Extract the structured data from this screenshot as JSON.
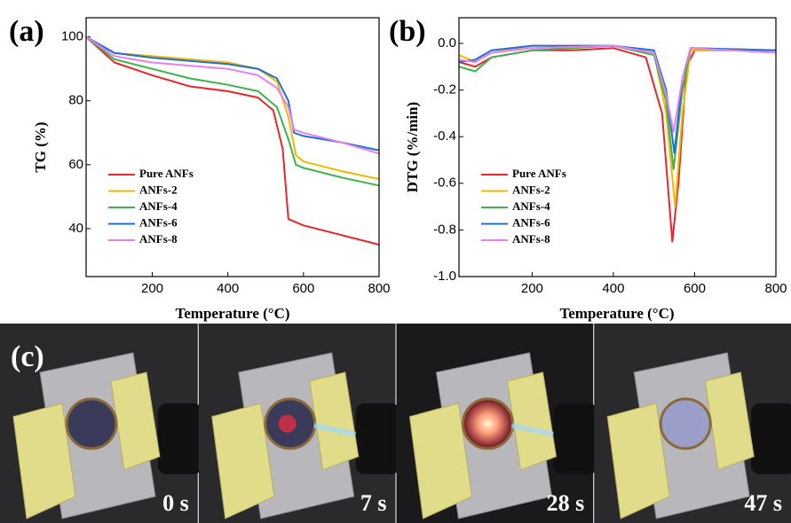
{
  "chart_data": [
    {
      "type": "line",
      "panel_label": "(a)",
      "x_label": "Temperature (°C)",
      "y_label": "TG (%)",
      "xlim": [
        25,
        800
      ],
      "ylim": [
        25,
        106
      ],
      "xticks": [
        200,
        400,
        600,
        800
      ],
      "yticks": [
        40,
        60,
        80,
        100
      ],
      "legend": "lower-left",
      "series": [
        {
          "name": "Pure ANFs",
          "color": "#e8262b",
          "x": [
            25,
            100,
            200,
            300,
            400,
            480,
            520,
            545,
            560,
            600,
            700,
            800
          ],
          "values": [
            100,
            92,
            88,
            84.5,
            83,
            81,
            77,
            65,
            43,
            41,
            38,
            35
          ]
        },
        {
          "name": "ANFs-2",
          "color": "#f2b800",
          "x": [
            25,
            100,
            200,
            300,
            400,
            480,
            530,
            560,
            580,
            600,
            700,
            800
          ],
          "values": [
            100,
            95,
            94,
            93,
            92,
            90,
            86,
            75,
            63,
            61,
            58,
            55.5
          ]
        },
        {
          "name": "ANFs-4",
          "color": "#3cb44b",
          "x": [
            25,
            100,
            200,
            300,
            400,
            480,
            530,
            560,
            580,
            600,
            700,
            800
          ],
          "values": [
            100,
            93,
            90,
            87,
            85,
            83,
            78,
            68,
            60,
            59,
            56,
            53.5
          ]
        },
        {
          "name": "ANFs-6",
          "color": "#1e6fd9",
          "x": [
            25,
            100,
            200,
            300,
            400,
            480,
            530,
            560,
            575,
            600,
            700,
            800
          ],
          "values": [
            100,
            95,
            93.5,
            92.5,
            91.5,
            90,
            87,
            80,
            70,
            69,
            67,
            64.5
          ]
        },
        {
          "name": "ANFs-8",
          "color": "#e87ef0",
          "x": [
            25,
            100,
            200,
            300,
            400,
            480,
            530,
            560,
            575,
            600,
            700,
            800
          ],
          "values": [
            100,
            94,
            92,
            91,
            90,
            88,
            84,
            78,
            71,
            70,
            67,
            63.5
          ]
        }
      ]
    },
    {
      "type": "line",
      "panel_label": "(b)",
      "x_label": "Temperature (°C)",
      "y_label": "DTG (%/min)",
      "xlim": [
        20,
        800
      ],
      "ylim": [
        -1.0,
        0.11
      ],
      "xticks": [
        200,
        400,
        600,
        800
      ],
      "yticks": [
        {
          "value": -1.0,
          "label": "-1.0"
        },
        -0.8,
        -0.6,
        -0.4,
        -0.2,
        {
          "value": 0.0,
          "label": "0.0"
        }
      ],
      "legend": "lower-left",
      "series": [
        {
          "name": "Pure ANFs",
          "color": "#e8262b",
          "x": [
            20,
            60,
            100,
            200,
            300,
            400,
            480,
            520,
            545,
            560,
            580,
            600,
            800
          ],
          "values": [
            -0.08,
            -0.1,
            -0.06,
            -0.03,
            -0.03,
            -0.02,
            -0.06,
            -0.3,
            -0.85,
            -0.6,
            -0.1,
            -0.03,
            -0.03
          ]
        },
        {
          "name": "ANFs-2",
          "color": "#f2b800",
          "x": [
            20,
            60,
            100,
            200,
            400,
            500,
            530,
            552,
            570,
            590,
            800
          ],
          "values": [
            -0.05,
            -0.08,
            -0.04,
            -0.01,
            -0.01,
            -0.04,
            -0.3,
            -0.7,
            -0.3,
            -0.03,
            -0.03
          ]
        },
        {
          "name": "ANFs-4",
          "color": "#3cb44b",
          "x": [
            20,
            60,
            100,
            200,
            300,
            400,
            500,
            530,
            548,
            570,
            590,
            800
          ],
          "values": [
            -0.1,
            -0.12,
            -0.06,
            -0.03,
            -0.02,
            -0.01,
            -0.05,
            -0.25,
            -0.54,
            -0.2,
            -0.02,
            -0.03
          ]
        },
        {
          "name": "ANFs-6",
          "color": "#1e6fd9",
          "x": [
            20,
            60,
            100,
            200,
            400,
            500,
            530,
            550,
            570,
            590,
            800
          ],
          "values": [
            -0.08,
            -0.07,
            -0.03,
            -0.01,
            -0.01,
            -0.03,
            -0.2,
            -0.47,
            -0.15,
            -0.02,
            -0.03
          ]
        },
        {
          "name": "ANFs-8",
          "color": "#e87ef0",
          "x": [
            20,
            60,
            100,
            200,
            400,
            500,
            530,
            548,
            570,
            590,
            800
          ],
          "values": [
            -0.07,
            -0.08,
            -0.04,
            -0.02,
            -0.01,
            -0.04,
            -0.22,
            -0.38,
            -0.15,
            -0.02,
            -0.04
          ]
        }
      ]
    }
  ],
  "photos": {
    "panel_label": "(c)",
    "times": [
      "0 s",
      "7 s",
      "28 s",
      "47 s"
    ]
  }
}
